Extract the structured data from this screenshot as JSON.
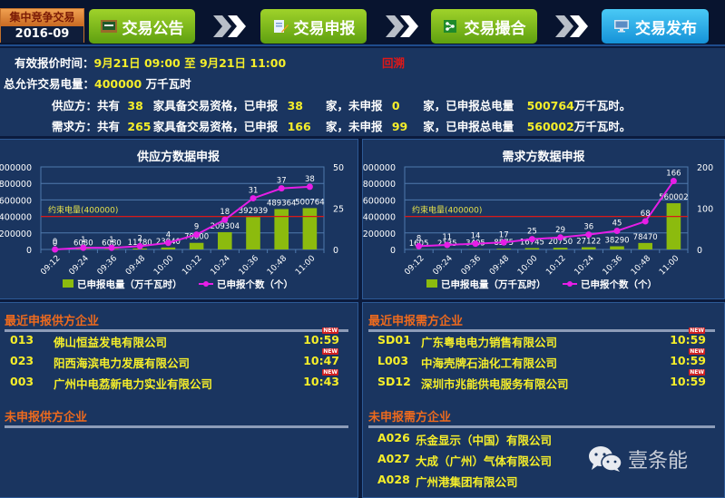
{
  "header": {
    "badge_title": "集中竞争交易",
    "badge_period": "2016-09",
    "steps": [
      {
        "label": "交易公告",
        "icon": "notice-board-icon",
        "color": "green"
      },
      {
        "label": "交易申报",
        "icon": "document-edit-icon",
        "color": "green"
      },
      {
        "label": "交易撮合",
        "icon": "share-icon",
        "color": "green"
      },
      {
        "label": "交易发布",
        "icon": "monitor-icon",
        "color": "blue"
      }
    ]
  },
  "info": {
    "time_label": "有效报价时间：",
    "time_value": "9月21日 09:00 至 9月21日 11:00",
    "backtrack_link": "回溯",
    "total_label": "总允许交易电量：",
    "total_value": "400000",
    "total_unit": "万千瓦时",
    "supply": {
      "label": "供应方：共有",
      "qualified": "38",
      "qualified_text": "家具备交易资格，已申报",
      "declared": "38",
      "declared_text": "家，未申报",
      "undeclared": "0",
      "undeclared_text": "家，已申报总电量",
      "total": "500764",
      "unit": "万千瓦时。"
    },
    "demand": {
      "label": "需求方：共有",
      "qualified": "265",
      "qualified_text": "家具备交易资格，已申报",
      "declared": "166",
      "declared_text": "家，未申报",
      "undeclared": "99",
      "undeclared_text": "家，已申报总电量",
      "total": "560002",
      "unit": "万千瓦时。"
    }
  },
  "chart_data": [
    {
      "type": "bar",
      "title": "供应方数据申报",
      "categories": [
        "09:12",
        "09:24",
        "09:36",
        "09:48",
        "10:00",
        "10:12",
        "10:24",
        "10:36",
        "10:48",
        "11:00"
      ],
      "series": [
        {
          "name": "已申报电量（万千瓦时）",
          "type": "bar",
          "axis": "left",
          "color": "#8cbb0e",
          "values": [
            0,
            6080,
            6080,
            11780,
            23940,
            79800,
            209304,
            392939,
            489364,
            500764
          ]
        },
        {
          "name": "已申报个数（个）",
          "type": "line",
          "axis": "right",
          "color": "#e61ee6",
          "values": [
            0,
            1,
            1,
            2,
            4,
            9,
            18,
            31,
            37,
            38
          ]
        }
      ],
      "left_ticks": [
        "0",
        "200000",
        "400000",
        "600000",
        "800000",
        "1000000"
      ],
      "right_ticks": [
        "0",
        "25",
        "50"
      ],
      "ylim_left": [
        0,
        1000000
      ],
      "ylim_right": [
        0,
        50
      ],
      "reference_line": {
        "label": "约束电量(400000)",
        "value": 400000,
        "color": "#d81818"
      },
      "grid": true,
      "legend_position": "bottom"
    },
    {
      "type": "bar",
      "title": "需求方数据申报",
      "categories": [
        "09:12",
        "09:24",
        "09:36",
        "09:48",
        "10:00",
        "10:12",
        "10:24",
        "10:36",
        "10:48",
        "11:00"
      ],
      "series": [
        {
          "name": "已申报电量（万千瓦时）",
          "type": "bar",
          "axis": "left",
          "color": "#8cbb0e",
          "values": [
            1605,
            2135,
            3405,
            8575,
            16745,
            20750,
            27122,
            38290,
            78470,
            560002
          ]
        },
        {
          "name": "已申报个数（个）",
          "type": "line",
          "axis": "right",
          "color": "#e61ee6",
          "values": [
            8,
            11,
            14,
            17,
            25,
            29,
            36,
            45,
            68,
            166
          ]
        }
      ],
      "left_ticks": [
        "0",
        "200000",
        "400000",
        "600000",
        "800000",
        "1000000"
      ],
      "right_ticks": [
        "0",
        "100",
        "200"
      ],
      "ylim_left": [
        0,
        1000000
      ],
      "ylim_right": [
        0,
        200
      ],
      "reference_line": {
        "label": "约束电量(400000)",
        "value": 400000,
        "color": "#d81818"
      },
      "grid": true,
      "legend_position": "bottom"
    }
  ],
  "lists": {
    "recent_supply": {
      "title": "最近申报供方企业",
      "rows": [
        {
          "code": "013",
          "name": "佛山恒益发电有限公司",
          "time": "10:59",
          "badge": "NEW"
        },
        {
          "code": "023",
          "name": "阳西海滨电力发展有限公司",
          "time": "10:47",
          "badge": "NEW"
        },
        {
          "code": "003",
          "name": "广州中电荔新电力实业有限公司",
          "time": "10:43",
          "badge": "NEW"
        }
      ]
    },
    "recent_demand": {
      "title": "最近申报需方企业",
      "rows": [
        {
          "code": "SD01",
          "name": "广东粤电电力销售有限公司",
          "time": "10:59",
          "badge": "NEW"
        },
        {
          "code": "L003",
          "name": "中海壳牌石油化工有限公司",
          "time": "10:59",
          "badge": "NEW"
        },
        {
          "code": "SD12",
          "name": "深圳市兆能供电服务有限公司",
          "time": "10:59",
          "badge": "NEW"
        }
      ]
    },
    "undeclared_supply": {
      "title": "未申报供方企业",
      "rows": []
    },
    "undeclared_demand": {
      "title": "未申报需方企业",
      "rows": [
        {
          "code": "A026",
          "name": "乐金显示（中国）有限公司"
        },
        {
          "code": "A027",
          "name": "大成（广州）气体有限公司"
        },
        {
          "code": "A028",
          "name": "广州港集团有限公司"
        }
      ]
    }
  },
  "watermark": {
    "text": "壹条能",
    "icon": "wechat-icon"
  }
}
